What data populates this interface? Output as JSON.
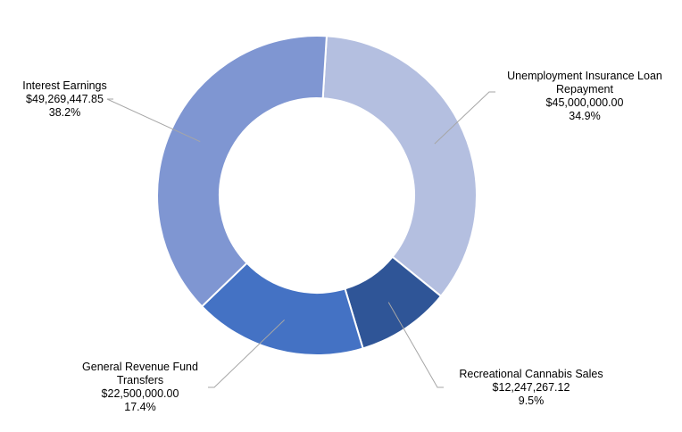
{
  "chart_data": {
    "type": "pie",
    "donut": true,
    "title": "",
    "legend": "none",
    "slices": [
      {
        "name": "Unemployment Insurance Loan Repayment",
        "label_lines": [
          "Unemployment Insurance Loan",
          "Repayment"
        ],
        "value": 45000000.0,
        "value_label": "$45,000,000.00",
        "percent_label": "34.9%",
        "color": "#b4bfe0"
      },
      {
        "name": "Recreational Cannabis Sales",
        "label_lines": [
          "Recreational Cannabis Sales"
        ],
        "value": 12247267.12,
        "value_label": "$12,247,267.12",
        "percent_label": "9.5%",
        "color": "#2f5597"
      },
      {
        "name": "General Revenue Fund Transfers",
        "label_lines": [
          "General Revenue Fund",
          "Transfers"
        ],
        "value": 22500000.0,
        "value_label": "$22,500,000.00",
        "percent_label": "17.4%",
        "color": "#4472c4"
      },
      {
        "name": "Interest Earnings",
        "label_lines": [
          "Interest Earnings"
        ],
        "value": 49269447.85,
        "value_label": "$49,269,447.85",
        "percent_label": "38.2%",
        "color": "#7f96d2"
      }
    ]
  }
}
